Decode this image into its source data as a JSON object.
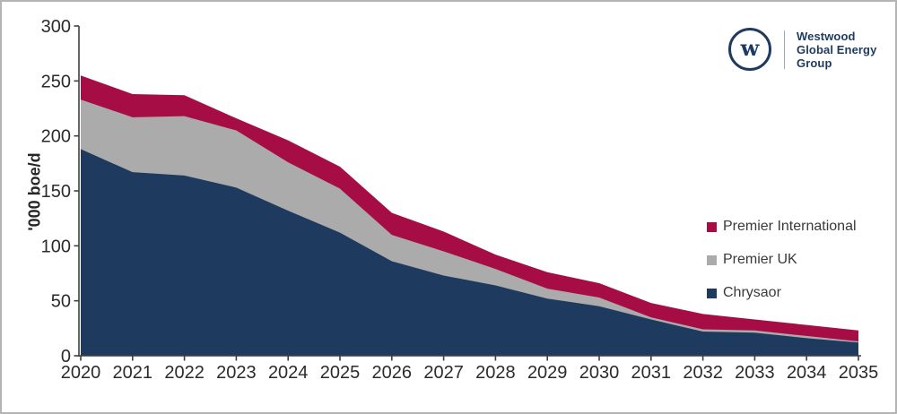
{
  "frame": {
    "border_color": "#b4b4b4",
    "background": "#ffffff"
  },
  "logo": {
    "monogram": "w",
    "lines": [
      "Westwood",
      "Global Energy",
      "Group"
    ],
    "color": "#1f3a5f"
  },
  "legend": {
    "items": [
      {
        "label": "Premier International",
        "color": "#a60d45"
      },
      {
        "label": "Premier UK",
        "color": "#ababab"
      },
      {
        "label": "Chrysaor",
        "color": "#1f3a5f"
      }
    ]
  },
  "chart_data": {
    "type": "area",
    "stacked": true,
    "title": "",
    "xlabel": "",
    "ylabel": "'000 boe/d",
    "ylim": [
      0,
      300
    ],
    "yticks": [
      0,
      50,
      100,
      150,
      200,
      250,
      300
    ],
    "grid": false,
    "legend_position": "right",
    "x": [
      2020,
      2021,
      2022,
      2023,
      2024,
      2025,
      2026,
      2027,
      2028,
      2029,
      2030,
      2031,
      2032,
      2033,
      2034,
      2035
    ],
    "series": [
      {
        "name": "Chrysaor",
        "color": "#1f3a5f",
        "values": [
          188,
          167,
          164,
          153,
          132,
          112,
          86,
          73,
          64,
          52,
          45,
          33,
          22,
          21,
          16,
          12
        ]
      },
      {
        "name": "Premier UK",
        "color": "#ababab",
        "values": [
          45,
          50,
          54,
          52,
          44,
          40,
          24,
          22,
          15,
          9,
          8,
          2,
          2,
          2,
          2,
          1
        ]
      },
      {
        "name": "Premier International",
        "color": "#a60d45",
        "values": [
          22,
          21,
          19,
          11,
          20,
          20,
          20,
          18,
          13,
          15,
          13,
          13,
          14,
          10,
          10,
          10
        ]
      }
    ],
    "axis_color": "#3f3f3f"
  }
}
